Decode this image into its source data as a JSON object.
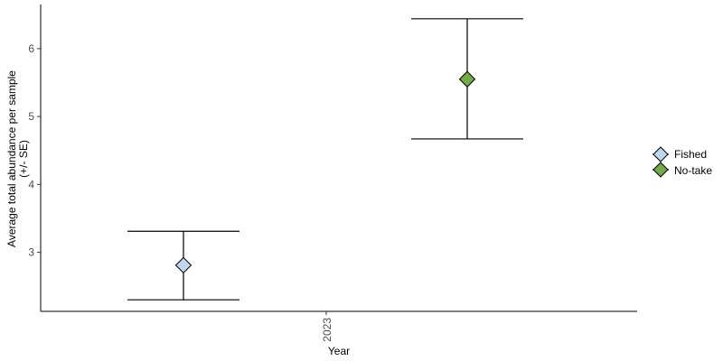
{
  "chart_data": {
    "type": "point-errorbar",
    "xlabel": "Year",
    "ylabel_lines": [
      "Average total abundance per sample",
      "(+/- SE)"
    ],
    "categories": [
      "2023"
    ],
    "y_ticks": [
      3,
      4,
      5,
      6
    ],
    "ylim": [
      2.13,
      6.65
    ],
    "series": [
      {
        "name": "Fished",
        "color": "#bdd7ee",
        "category": "2023",
        "mean": 2.81,
        "se_low": 2.3,
        "se_high": 3.31
      },
      {
        "name": "No-take",
        "color": "#70ad47",
        "category": "2023",
        "mean": 5.55,
        "se_low": 4.67,
        "se_high": 6.44
      }
    ],
    "legend_position": "right",
    "grid": false
  }
}
